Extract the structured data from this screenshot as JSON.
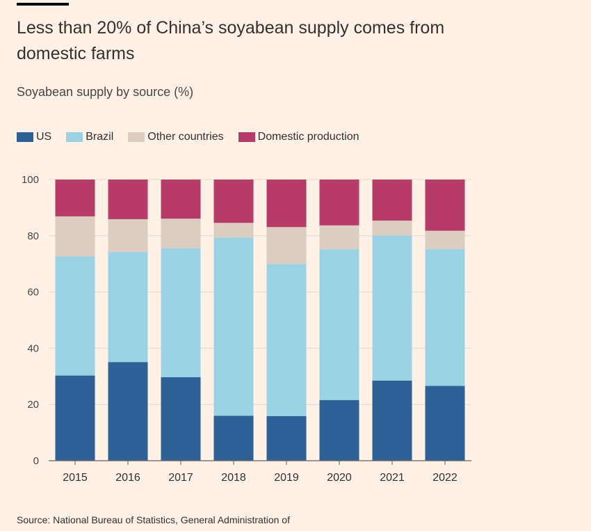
{
  "header": {
    "title": "Less than 20% of China’s soyabean supply comes from domestic farms",
    "subtitle": "Soyabean supply by source (%)"
  },
  "legend": [
    {
      "label": "US",
      "color": "#2E6196"
    },
    {
      "label": "Brazil",
      "color": "#9BD3E5"
    },
    {
      "label": "Other countries",
      "color": "#DCCDC3"
    },
    {
      "label": "Domestic production",
      "color": "#B63B66"
    }
  ],
  "footer": {
    "source": "Source: National Bureau of Statistics, General Administration of"
  },
  "chart_data": {
    "type": "bar",
    "stacked": true,
    "title": "Less than 20% of China’s soyabean supply comes from domestic farms",
    "subtitle": "Soyabean supply by source (%)",
    "xlabel": "",
    "ylabel": "",
    "ylim": [
      0,
      100
    ],
    "yticks": [
      0,
      20,
      40,
      60,
      80,
      100
    ],
    "grid": true,
    "legend_position": "top-left",
    "categories": [
      "2015",
      "2016",
      "2017",
      "2018",
      "2019",
      "2020",
      "2021",
      "2022"
    ],
    "series": [
      {
        "name": "US",
        "color": "#2E6196",
        "values": [
          30.3,
          35.1,
          29.7,
          16.0,
          15.9,
          21.6,
          28.5,
          26.6
        ]
      },
      {
        "name": "Brazil",
        "color": "#9BD3E5",
        "values": [
          42.4,
          39.2,
          45.8,
          63.4,
          54.1,
          53.6,
          51.6,
          48.7
        ]
      },
      {
        "name": "Other countries",
        "color": "#DCCDC3",
        "values": [
          14.2,
          11.6,
          10.6,
          5.2,
          13.1,
          8.5,
          5.3,
          6.5
        ]
      },
      {
        "name": "Domestic production",
        "color": "#B63B66",
        "values": [
          13.1,
          14.1,
          13.9,
          15.4,
          16.9,
          16.3,
          14.6,
          18.2
        ]
      }
    ]
  }
}
